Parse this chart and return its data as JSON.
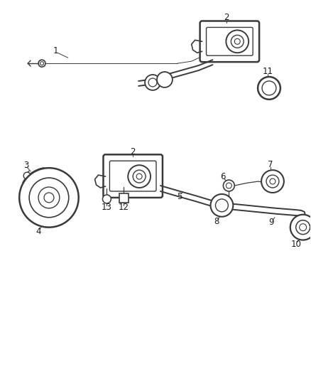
{
  "background": "#ffffff",
  "line_color": "#3a3a3a",
  "fig_width": 4.38,
  "fig_height": 5.33,
  "dpi": 100,
  "lw_main": 1.4,
  "lw_thin": 0.9,
  "lw_thick": 2.0
}
